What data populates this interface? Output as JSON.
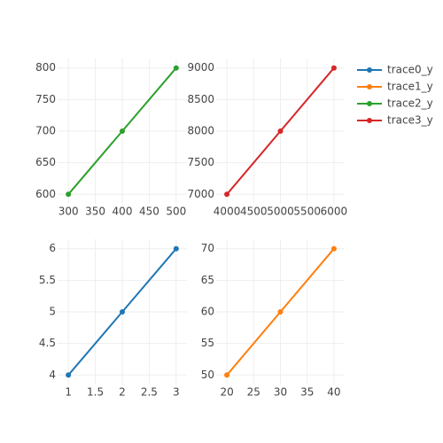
{
  "chart_data": [
    {
      "type": "line",
      "x": [
        1,
        2,
        3
      ],
      "series": [
        {
          "name": "trace0_y",
          "color": "#1f77b4",
          "values": [
            4,
            5,
            6
          ]
        }
      ],
      "xlim": [
        0.8,
        3.2
      ],
      "xticks": [
        1,
        1.5,
        2,
        2.5,
        3
      ],
      "ylim": [
        3.85,
        6.15
      ],
      "yticks": [
        4,
        4.5,
        5,
        5.5,
        6
      ],
      "grid": true
    },
    {
      "type": "line",
      "x": [
        20,
        30,
        40
      ],
      "series": [
        {
          "name": "trace1_y",
          "color": "#ff7f0e",
          "values": [
            50,
            60,
            70
          ]
        }
      ],
      "xlim": [
        18,
        42
      ],
      "xticks": [
        20,
        25,
        30,
        35,
        40
      ],
      "ylim": [
        48.5,
        71.5
      ],
      "yticks": [
        50,
        55,
        60,
        65,
        70
      ],
      "grid": true
    },
    {
      "type": "line",
      "x": [
        300,
        400,
        500
      ],
      "series": [
        {
          "name": "trace2_y",
          "color": "#2ca02c",
          "values": [
            600,
            700,
            800
          ]
        }
      ],
      "xlim": [
        280,
        520
      ],
      "xticks": [
        300,
        350,
        400,
        450,
        500
      ],
      "ylim": [
        585,
        815
      ],
      "yticks": [
        600,
        650,
        700,
        750,
        800
      ],
      "grid": true
    },
    {
      "type": "line",
      "x": [
        4000,
        5000,
        6000
      ],
      "series": [
        {
          "name": "trace3_y",
          "color": "#d62728",
          "values": [
            7000,
            8000,
            9000
          ]
        }
      ],
      "xlim": [
        3800,
        6200
      ],
      "xticks": [
        4000,
        4500,
        5000,
        5500,
        6000
      ],
      "ylim": [
        6850,
        9150
      ],
      "yticks": [
        7000,
        7500,
        8000,
        8500,
        9000
      ],
      "grid": true
    }
  ]
}
